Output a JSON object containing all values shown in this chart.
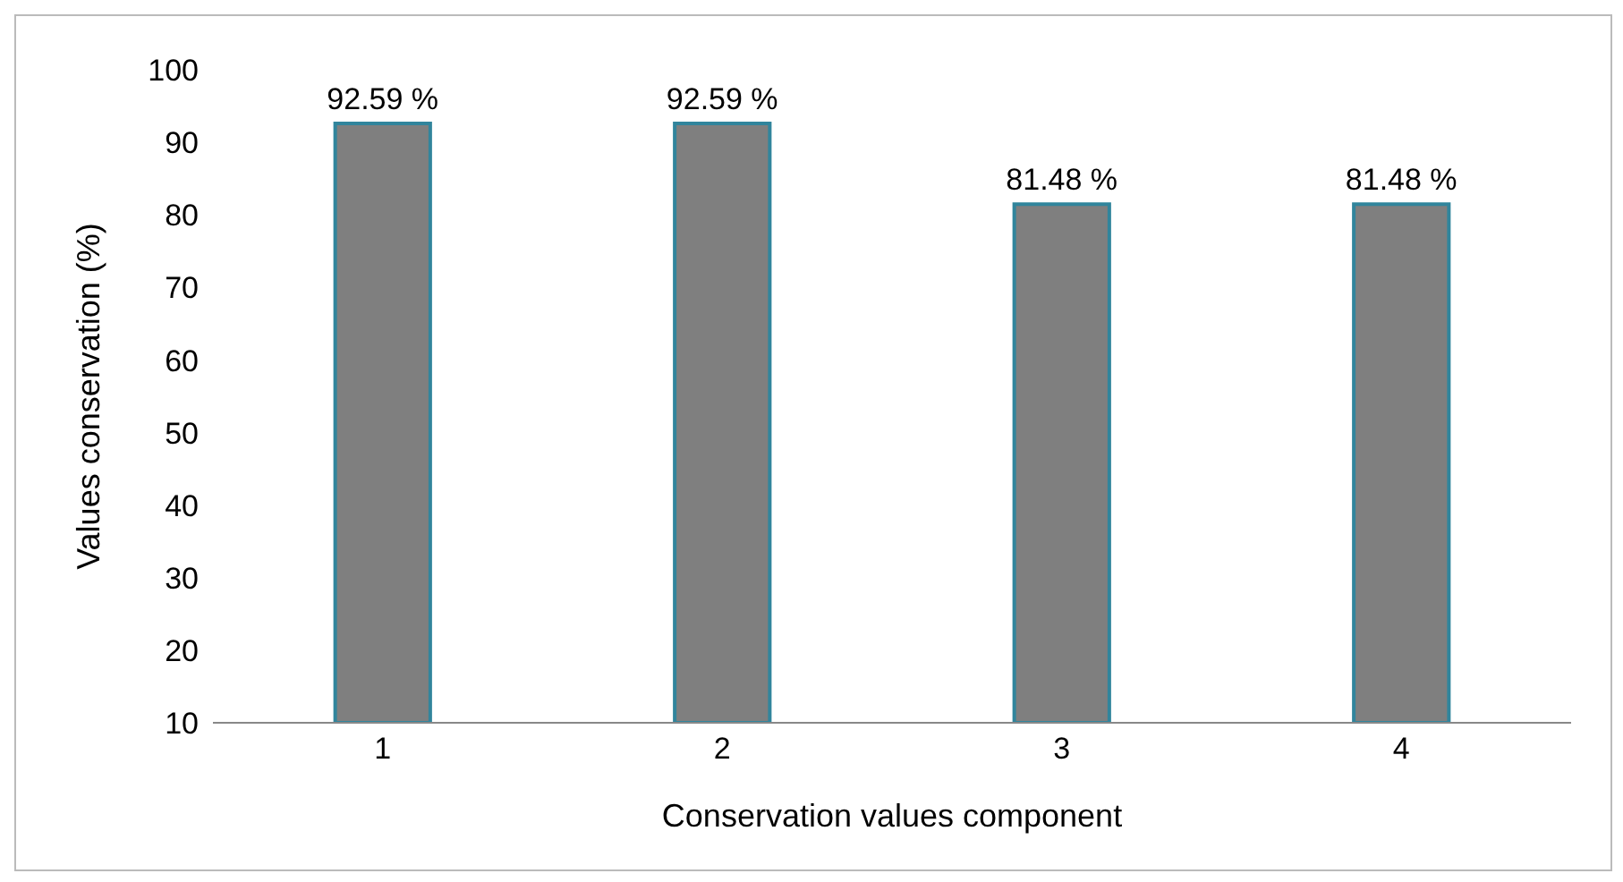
{
  "chart_data": {
    "type": "bar",
    "xlabel": "Conservation values component",
    "ylabel": "Values  conservation (%)",
    "categories": [
      "1",
      "2",
      "3",
      "4"
    ],
    "values": [
      92.59,
      92.59,
      81.48,
      81.48
    ],
    "value_labels": [
      "92.59 %",
      "92.59 %",
      "81.48 %",
      "81.48 %"
    ],
    "color": "#7f7f7f",
    "ylim": [
      10,
      100
    ],
    "yticks": [
      10,
      20,
      30,
      40,
      50,
      60,
      70,
      80,
      90,
      100
    ],
    "grid": false
  }
}
